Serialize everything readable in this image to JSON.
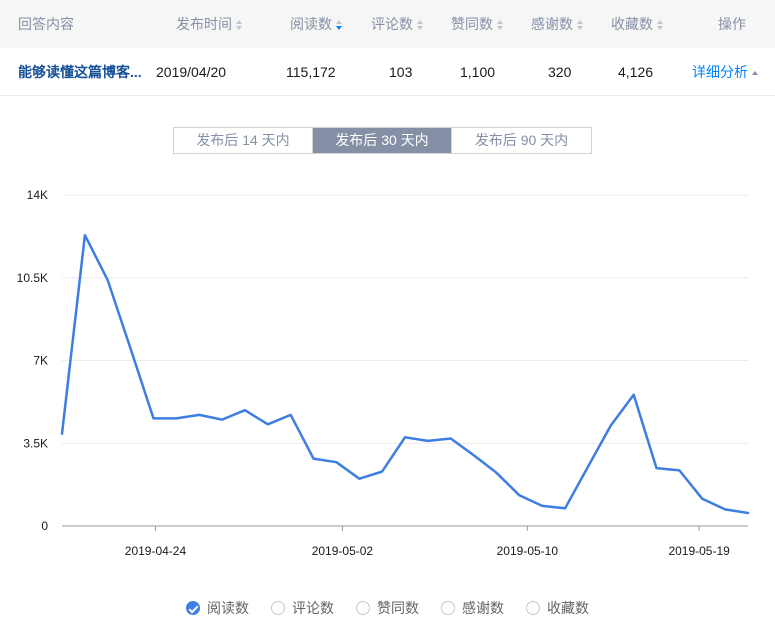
{
  "table": {
    "headers": [
      {
        "label": "回答内容",
        "sortable": false
      },
      {
        "label": "发布时间",
        "sortable": true
      },
      {
        "label": "阅读数",
        "sortable": true,
        "active": true
      },
      {
        "label": "评论数",
        "sortable": true
      },
      {
        "label": "赞同数",
        "sortable": true
      },
      {
        "label": "感谢数",
        "sortable": true
      },
      {
        "label": "收藏数",
        "sortable": true
      },
      {
        "label": "操作",
        "sortable": false
      }
    ],
    "row": {
      "title": "能够读懂这篇博客...",
      "date": "2019/04/20",
      "reads": "115,172",
      "comments": "103",
      "likes": "1,100",
      "thanks": "320",
      "favorites": "4,126",
      "action": "详细分析"
    }
  },
  "tabs": [
    {
      "label": "发布后 14 天内",
      "active": false
    },
    {
      "label": "发布后 30 天内",
      "active": true
    },
    {
      "label": "发布后 90 天内",
      "active": false
    }
  ],
  "legend": [
    {
      "label": "阅读数",
      "checked": true
    },
    {
      "label": "评论数",
      "checked": false
    },
    {
      "label": "赞同数",
      "checked": false
    },
    {
      "label": "感谢数",
      "checked": false
    },
    {
      "label": "收藏数",
      "checked": false
    }
  ],
  "colors": {
    "line": "#3e7ee1",
    "grid": "#ececec",
    "axis": "#999999"
  },
  "chart_data": {
    "type": "line",
    "title": "",
    "xlabel": "",
    "ylabel": "",
    "y_tick_labels": [
      "0",
      "3.5K",
      "7K",
      "10.5K",
      "14K"
    ],
    "y_ticks": [
      0,
      3500,
      7000,
      10500,
      14000
    ],
    "ylim": [
      0,
      14000
    ],
    "x_tick_labels": [
      "2019-04-24",
      "2019-05-02",
      "2019-05-10",
      "2019-05-19"
    ],
    "x_tick_dates_index": [
      4,
      12,
      20,
      29
    ],
    "grid": true,
    "legend_position": "bottom",
    "x": [
      "2019-04-20",
      "2019-04-21",
      "2019-04-22",
      "2019-04-23",
      "2019-04-24",
      "2019-04-25",
      "2019-04-26",
      "2019-04-27",
      "2019-04-28",
      "2019-04-29",
      "2019-04-30",
      "2019-05-01",
      "2019-05-02",
      "2019-05-03",
      "2019-05-04",
      "2019-05-05",
      "2019-05-06",
      "2019-05-07",
      "2019-05-08",
      "2019-05-09",
      "2019-05-10",
      "2019-05-11",
      "2019-05-12",
      "2019-05-13",
      "2019-05-14",
      "2019-05-15",
      "2019-05-16",
      "2019-05-17",
      "2019-05-18",
      "2019-05-19",
      "2019-05-20"
    ],
    "series": [
      {
        "name": "阅读数",
        "values": [
          3900,
          12300,
          10400,
          7500,
          4550,
          4550,
          4700,
          4500,
          4900,
          4300,
          4700,
          2850,
          2700,
          2000,
          2300,
          3750,
          3600,
          3700,
          3000,
          2250,
          1300,
          850,
          750,
          2500,
          4250,
          5550,
          2450,
          2350,
          1150,
          700,
          550
        ]
      }
    ]
  }
}
